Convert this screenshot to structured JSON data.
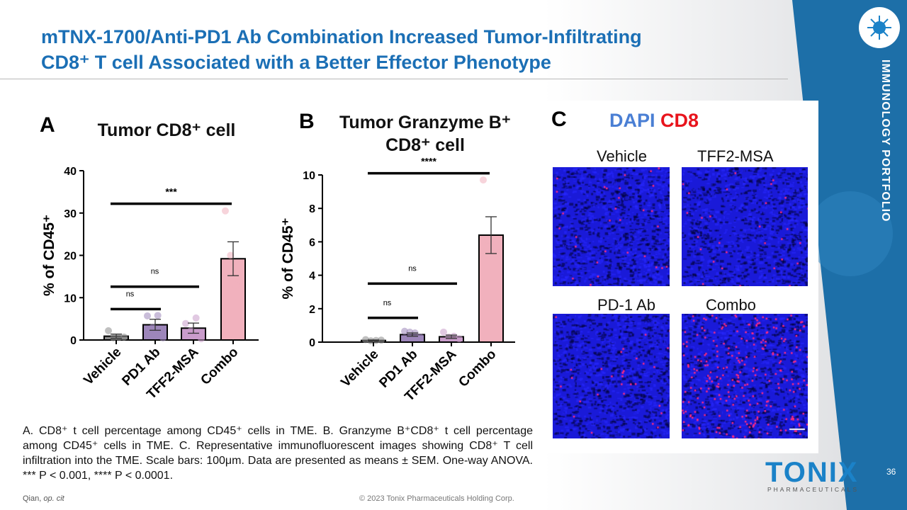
{
  "slide": {
    "title_line1": "mTNX-1700/Anti-PD1 Ab Combination Increased Tumor-Infiltrating",
    "title_line2": "CD8⁺ T cell Associated with a Better Effector Phenotype",
    "side_label": "IMMUNOLOGY PORTFOLIO",
    "page_number": "36",
    "brand": "TONIX",
    "brand_sub": "PHARMACEUTICALS",
    "citation_author": "Qian,",
    "citation_ref": "op. cit",
    "copyright": "© 2023 Tonix Pharmaceuticals Holding Corp.",
    "accent": "#1b6fb5",
    "caption": "A. CD8⁺ t cell percentage among CD45⁺ cells in TME. B. Granzyme B⁺CD8⁺ t cell percentage among CD45⁺ cells in TME. C. Representative immunofluorescent images showing CD8⁺ T cell infiltration into the TME. Scale bars: 100μm. Data are presented as means ± SEM. One-way ANOVA. *** P < 0.001, **** P < 0.0001."
  },
  "panel_c": {
    "letter": "C",
    "stain1": "DAPI",
    "stain1_color": "#4a7fd4",
    "stain2": "CD8",
    "stain2_color": "#e8141c",
    "images": [
      {
        "label": "Vehicle",
        "cd8_density": "low"
      },
      {
        "label": "TFF2-MSA",
        "cd8_density": "low"
      },
      {
        "label": "PD-1 Ab",
        "cd8_density": "low"
      },
      {
        "label": "Combo",
        "cd8_density": "high"
      }
    ]
  },
  "chart_data": [
    {
      "type": "bar",
      "panel": "A",
      "title": "Tumor CD8⁺ cell",
      "ylabel": "% of CD45⁺",
      "ylim": [
        0,
        40
      ],
      "yticks": [
        0,
        10,
        20,
        30,
        40
      ],
      "categories": [
        "Vehicle",
        "PD1 Ab",
        "TFF2-MSA",
        "Combo"
      ],
      "values": [
        0.9,
        3.6,
        2.8,
        19.2
      ],
      "sem": [
        0.5,
        1.3,
        1.2,
        4.0
      ],
      "colors": [
        "#8c8c8c",
        "#9d86ba",
        "#c99ccb",
        "#f1b1bd"
      ],
      "points": [
        [
          2.2,
          0.5,
          0.6,
          0.7
        ],
        [
          5.7,
          3.0,
          5.8,
          0.5
        ],
        [
          3.9,
          2.2,
          5.2,
          0.3
        ],
        [
          30.5,
          20.0,
          13.0,
          14.0
        ]
      ],
      "significance": [
        {
          "from": 0,
          "to": 1,
          "y": 7.3,
          "label": "ns"
        },
        {
          "from": 0,
          "to": 2,
          "y": 12.6,
          "label": "ns"
        },
        {
          "from": 0,
          "to": 3,
          "y": 32.2,
          "label": "***"
        }
      ]
    },
    {
      "type": "bar",
      "panel": "B",
      "title": "Tumor Granzyme B⁺ CD8⁺ cell",
      "ylabel": "% of CD45⁺",
      "ylim": [
        0,
        10
      ],
      "yticks": [
        0,
        2,
        4,
        6,
        8,
        10
      ],
      "categories": [
        "Vehicle",
        "PD1 Ab",
        "TFF2-MSA",
        "Combo"
      ],
      "values": [
        0.1,
        0.45,
        0.32,
        6.4
      ],
      "sem": [
        0.03,
        0.1,
        0.1,
        1.1
      ],
      "colors": [
        "#8c8c8c",
        "#9d86ba",
        "#c99ccb",
        "#f1b1bd"
      ],
      "points": [
        [
          0.15,
          0.08,
          0.1,
          0.12
        ],
        [
          0.65,
          0.6,
          0.55,
          0.3
        ],
        [
          0.6,
          0.3,
          0.35,
          0.2
        ],
        [
          9.7,
          6.1,
          5.4,
          5.3
        ]
      ],
      "significance": [
        {
          "from": 0,
          "to": 1,
          "y": 1.45,
          "label": "ns"
        },
        {
          "from": 0,
          "to": 2,
          "y": 3.5,
          "label": "ns"
        },
        {
          "from": 0,
          "to": 3,
          "y": 10.1,
          "label": "****"
        }
      ]
    }
  ]
}
